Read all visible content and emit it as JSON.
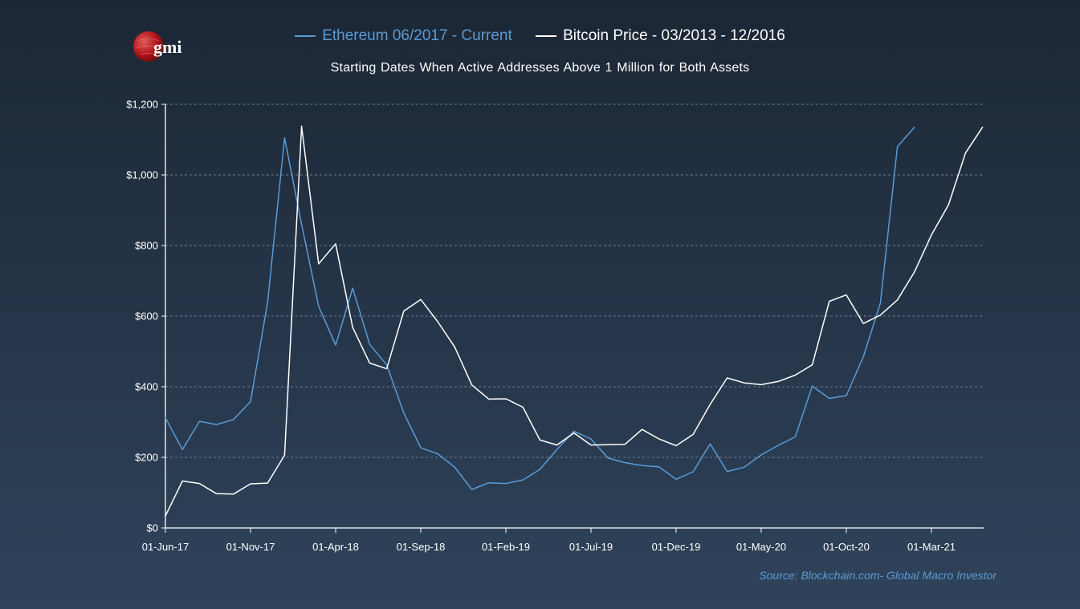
{
  "logo": {
    "text": "gmi",
    "colors": {
      "globe": "#c0161c",
      "text": "#ffffff"
    }
  },
  "chart_data": {
    "type": "line",
    "title": "",
    "subtitle": "Starting Dates When Active  Addresses Above 1 Million for Both Assets",
    "xlabel": "",
    "ylabel": "",
    "ylim": [
      0,
      1200
    ],
    "yticks": [
      0,
      200,
      400,
      600,
      800,
      1000,
      1200
    ],
    "ytick_labels": [
      "$0",
      "$200",
      "$400",
      "$600",
      "$800",
      "$1,000",
      "$1,200"
    ],
    "xtick_labels": [
      "01-Jun-17",
      "01-Nov-17",
      "01-Apr-18",
      "01-Sep-18",
      "01-Feb-19",
      "01-Jul-19",
      "01-Dec-19",
      "01-May-20",
      "01-Oct-20",
      "01-Mar-21"
    ],
    "x_start": "2017-06",
    "x_step": "month",
    "grid": "horizontal dashed",
    "legend_position": "top-center",
    "series": [
      {
        "name": "Ethereum 06/2017 - Current",
        "color": "#5b9bd5",
        "values": [
          312,
          222,
          302,
          293,
          307,
          358,
          638,
          1105,
          860,
          628,
          518,
          679,
          520,
          462,
          326,
          227,
          210,
          172,
          109,
          128,
          126,
          136,
          166,
          222,
          274,
          252,
          198,
          185,
          177,
          173,
          138,
          159,
          238,
          160,
          172,
          207,
          234,
          258,
          402,
          367,
          375,
          485,
          637,
          1080,
          1135
        ]
      },
      {
        "name": "Bitcoin Price - 03/2013 - 12/2016",
        "color": "#ffffff",
        "values": [
          34,
          133,
          126,
          97,
          96,
          125,
          127,
          206,
          1138,
          748,
          805,
          568,
          467,
          451,
          614,
          647,
          584,
          512,
          405,
          365,
          366,
          342,
          249,
          235,
          269,
          235,
          236,
          237,
          279,
          252,
          233,
          265,
          350,
          425,
          411,
          406,
          415,
          433,
          462,
          642,
          660,
          579,
          603,
          646,
          725,
          830,
          915,
          1062,
          1135
        ]
      }
    ]
  },
  "source": "Source: Blockchain.com- Global Macro Investor"
}
